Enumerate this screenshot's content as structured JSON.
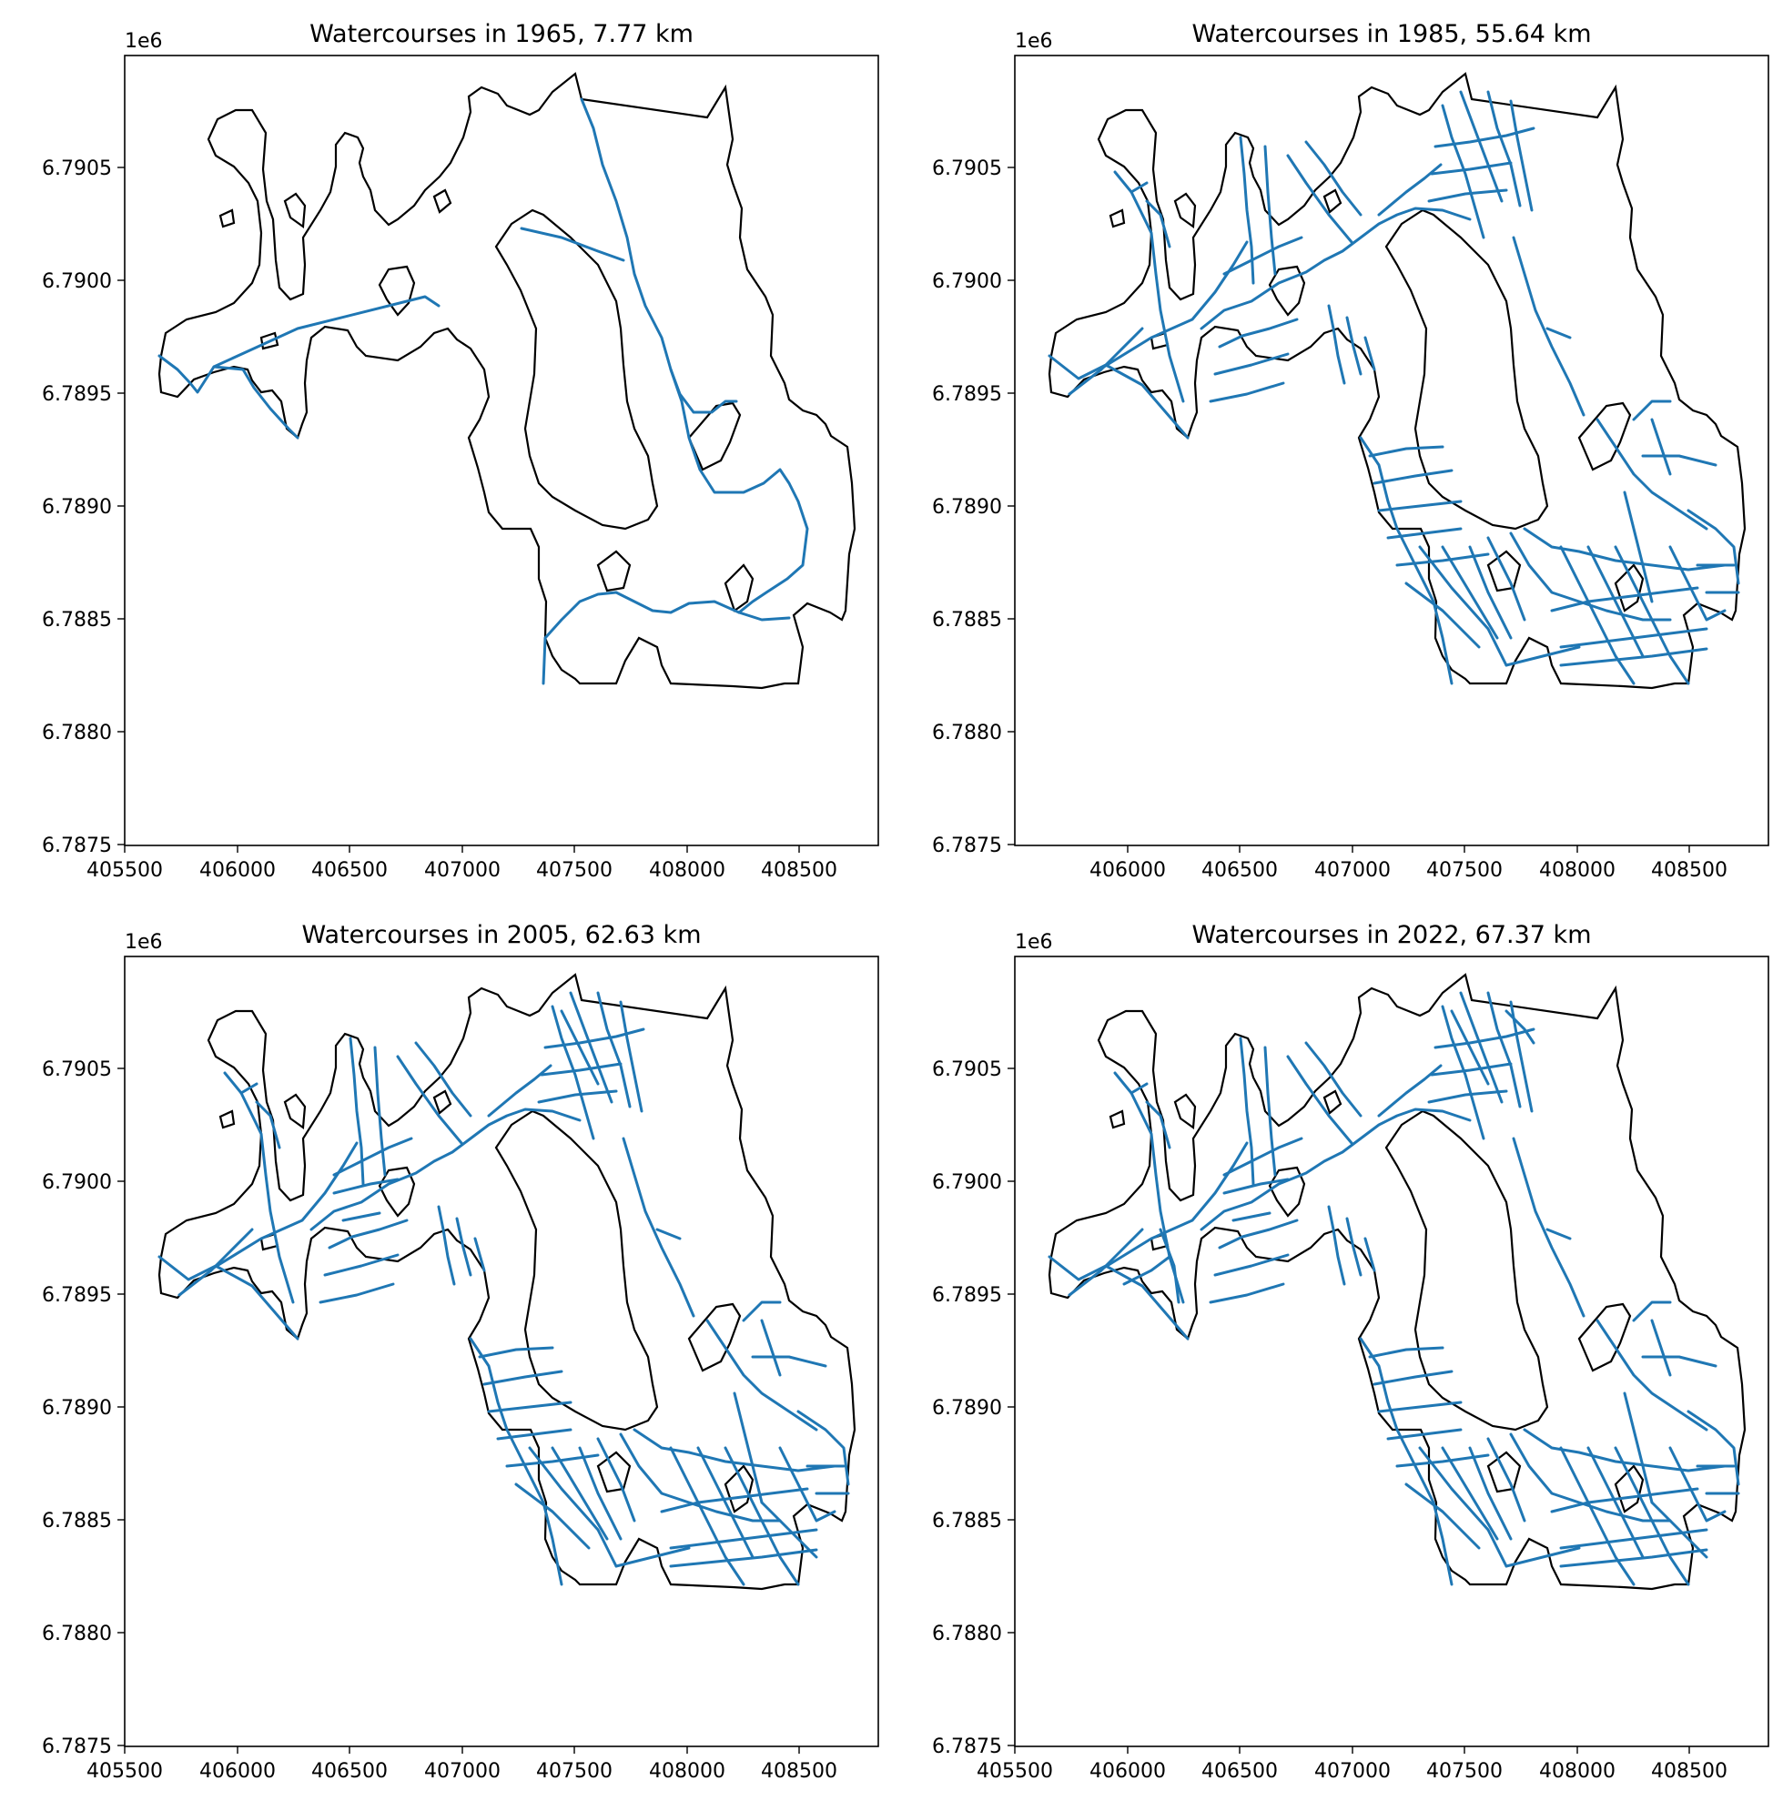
{
  "figure": {
    "panels": [
      {
        "title": "Watercourses in 1965, 7.77 km",
        "year": 1965,
        "length_km": 7.77
      },
      {
        "title": "Watercourses in 1985, 55.64 km",
        "year": 1985,
        "length_km": 55.64
      },
      {
        "title": "Watercourses in 2005, 62.63 km",
        "year": 2005,
        "length_km": 62.63
      },
      {
        "title": "Watercourses in 2022, 67.37 km",
        "year": 2022,
        "length_km": 67.37
      }
    ]
  },
  "chart_data": [
    {
      "type": "map",
      "title": "Watercourses in 1965, 7.77 km",
      "offset_label": "1e6",
      "xlim": [
        405500,
        408850
      ],
      "ylim": [
        6787500,
        6790960
      ],
      "x_ticks": [
        "405500",
        "406000",
        "406500",
        "407000",
        "407500",
        "408000",
        "408500"
      ],
      "y_ticks": [
        "6.7875",
        "6.7880",
        "6.7885",
        "6.7890",
        "6.7895",
        "6.7900",
        "6.7905"
      ]
    },
    {
      "type": "map",
      "title": "Watercourses in 1985, 55.64 km",
      "offset_label": "1e6",
      "xlim": [
        405500,
        408850
      ],
      "ylim": [
        6787500,
        6790960
      ],
      "x_ticks": [
        "406000",
        "406500",
        "407000",
        "407500",
        "408000",
        "408500"
      ],
      "y_ticks": [
        "6.7875",
        "6.7880",
        "6.7885",
        "6.7890",
        "6.7895",
        "6.7900",
        "6.7905"
      ]
    },
    {
      "type": "map",
      "title": "Watercourses in 2005, 62.63 km",
      "offset_label": "1e6",
      "xlim": [
        405500,
        408850
      ],
      "ylim": [
        6787500,
        6790960
      ],
      "x_ticks": [
        "405500",
        "406000",
        "406500",
        "407000",
        "407500",
        "408000",
        "408500"
      ],
      "y_ticks": [
        "6.7875",
        "6.7880",
        "6.7885",
        "6.7890",
        "6.7895",
        "6.7900",
        "6.7905"
      ]
    },
    {
      "type": "map",
      "title": "Watercourses in 2022, 67.37 km",
      "offset_label": "1e6",
      "xlim": [
        405500,
        408850
      ],
      "ylim": [
        6787500,
        6790960
      ],
      "x_ticks": [
        "405500",
        "406000",
        "406500",
        "407000",
        "407500",
        "408000",
        "408500"
      ],
      "y_ticks": [
        "6.7875",
        "6.7880",
        "6.7885",
        "6.7890",
        "6.7895",
        "6.7900",
        "6.7905"
      ]
    }
  ],
  "colors": {
    "watercourse": "#1f77b4",
    "boundary": "#000000"
  }
}
